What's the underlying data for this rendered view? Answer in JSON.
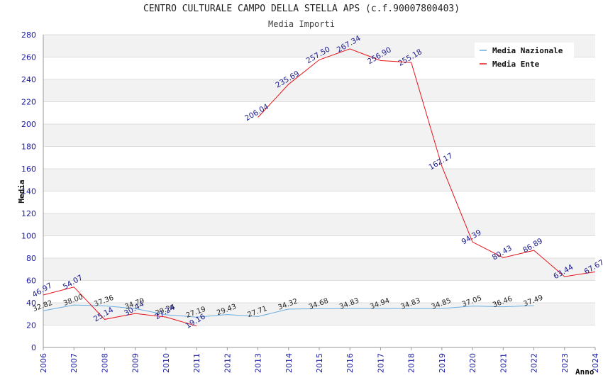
{
  "chart_data": {
    "type": "line",
    "title": "CENTRO CULTURALE CAMPO DELLA STELLA APS (c.f.90007800403)",
    "subtitle": "Media Importi",
    "xlabel": "Anno",
    "ylabel": "Media",
    "ylim": [
      0,
      280
    ],
    "yticks": [
      0,
      20,
      40,
      60,
      80,
      100,
      120,
      140,
      160,
      180,
      200,
      220,
      240,
      260,
      280
    ],
    "x": [
      2006,
      2007,
      2008,
      2009,
      2010,
      2011,
      2012,
      2013,
      2014,
      2015,
      2016,
      2017,
      2018,
      2019,
      2020,
      2021,
      2022,
      2023,
      2024
    ],
    "grid": "horizontal, alternating bands",
    "legend_position": "top-right",
    "series": [
      {
        "name": "Media Nazionale",
        "color": "#6aaee0",
        "values": [
          32.82,
          38.0,
          37.36,
          34.79,
          29.24,
          27.19,
          29.43,
          27.71,
          34.32,
          34.68,
          34.83,
          34.94,
          34.83,
          34.85,
          37.05,
          36.46,
          37.49,
          null,
          null
        ],
        "labels": [
          "32.82",
          "38.00",
          "37.36",
          "34.79",
          "29.24",
          "27.19",
          "29.43",
          "27.71",
          "34.32",
          "34.68",
          "34.83",
          "34.94",
          "34.83",
          "34.85",
          "37.05",
          "36.46",
          "37.49",
          "",
          ""
        ]
      },
      {
        "name": "Media Ente",
        "color": "#e8141a",
        "values": [
          46.97,
          54.07,
          25.14,
          30.44,
          27.24,
          19.16,
          null,
          206.04,
          235.69,
          257.5,
          267.34,
          256.9,
          255.18,
          162.17,
          94.39,
          80.43,
          86.89,
          63.44,
          67.67
        ],
        "labels": [
          "46.97",
          "54.07",
          "25.14",
          "30.44",
          "27.24",
          "19.16",
          "",
          "206.04",
          "235.69",
          "257.50",
          "267.34",
          "256.90",
          "255.18",
          "162.17",
          "94.39",
          "80.43",
          "86.89",
          "63.44",
          "67.67"
        ]
      }
    ]
  }
}
